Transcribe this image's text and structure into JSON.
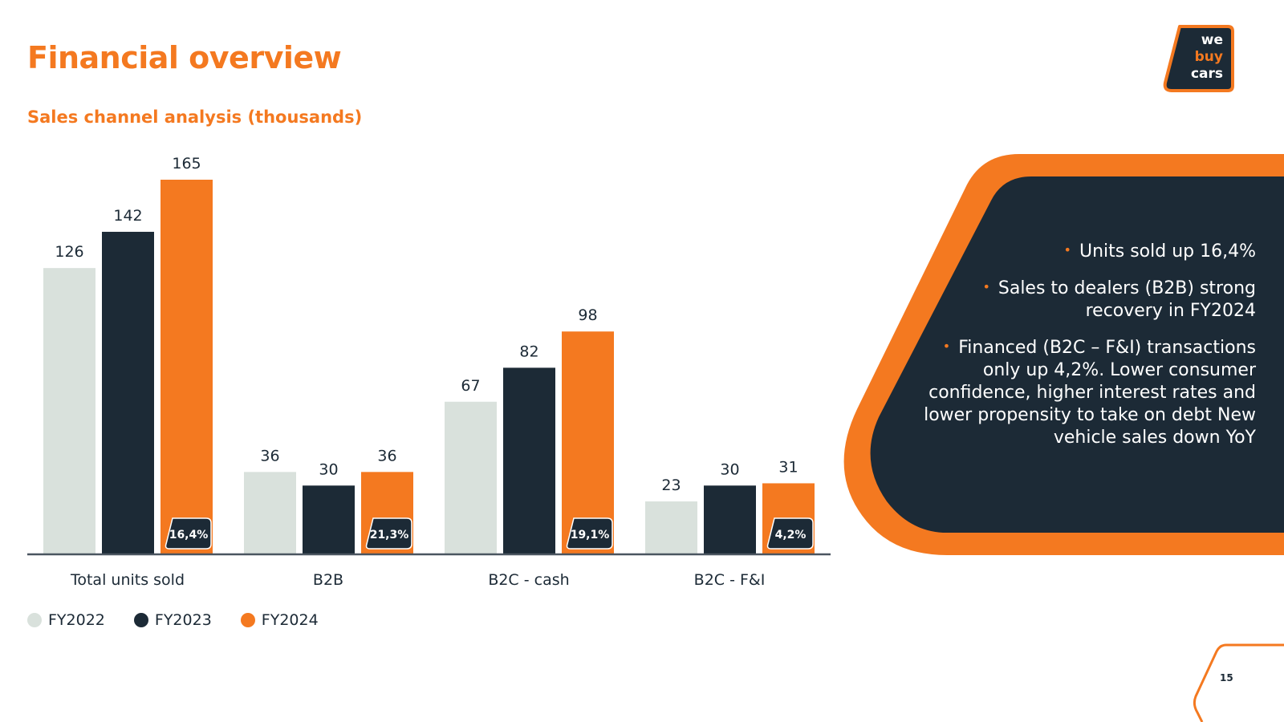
{
  "title": "Financial overview",
  "page_number": "15",
  "logo": {
    "line1": "we",
    "line2": "buy",
    "line3": "cars"
  },
  "colors": {
    "accent": "#f47920",
    "dark": "#1c2a36",
    "light": "#d9e1dc"
  },
  "bullets": [
    "Units sold up 16,4%",
    "Sales to dealers (B2B) strong recovery in FY2024",
    "Financed (B2C – F&I) transactions only up 4,2%. Lower consumer confidence, higher interest rates and lower propensity to take on debt New vehicle sales down YoY"
  ],
  "chart_data": {
    "type": "bar",
    "title": "Sales channel analysis (thousands)",
    "categories": [
      "Total units sold",
      "B2B",
      "B2C - cash",
      "B2C - F&I"
    ],
    "series": [
      {
        "name": "FY2022",
        "color": "#d9e1dc",
        "values": [
          126,
          36,
          67,
          23
        ]
      },
      {
        "name": "FY2023",
        "color": "#1c2a36",
        "values": [
          142,
          30,
          82,
          30
        ]
      },
      {
        "name": "FY2024",
        "color": "#f47920",
        "values": [
          165,
          36,
          98,
          31
        ]
      }
    ],
    "growth_labels": [
      "16,4%",
      "21,3%",
      "19,1%",
      "4,2%"
    ],
    "ylim": [
      0,
      165
    ],
    "legend": "bottom-left",
    "grid": false
  }
}
